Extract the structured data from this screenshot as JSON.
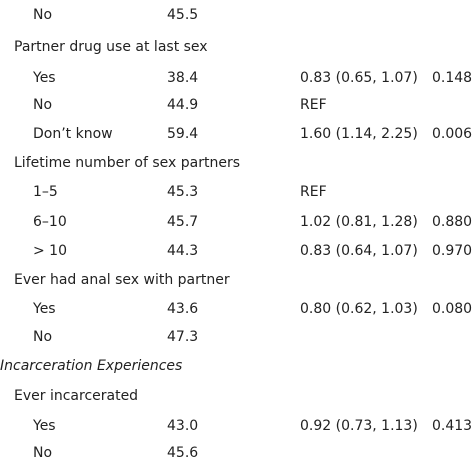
{
  "rows": [
    {
      "label": "No",
      "pct": "45.5",
      "or": "",
      "p": "",
      "level": 2
    },
    {
      "label": "Partner drug use at last sex",
      "pct": "",
      "or": "",
      "p": "",
      "level": 1
    },
    {
      "label": "Yes",
      "pct": "38.4",
      "or": "0.83 (0.65, 1.07)",
      "p": "0.148",
      "level": 2
    },
    {
      "label": "No",
      "pct": "44.9",
      "or": "REF",
      "p": "",
      "level": 2
    },
    {
      "label": "Don’t know",
      "pct": "59.4",
      "or": "1.60 (1.14, 2.25)",
      "p": "0.006",
      "level": 2
    },
    {
      "label": "Lifetime number of sex partners",
      "pct": "",
      "or": "",
      "p": "",
      "level": 1
    },
    {
      "label": "1–5",
      "pct": "45.3",
      "or": "REF",
      "p": "",
      "level": 2
    },
    {
      "label": "6–10",
      "pct": "45.7",
      "or": "1.02 (0.81, 1.28)",
      "p": "0.880",
      "level": 2
    },
    {
      "label": "> 10",
      "pct": "44.3",
      "or": "0.83 (0.64, 1.07)",
      "p": "0.970",
      "level": 2
    },
    {
      "label": "Ever had anal sex with partner",
      "pct": "",
      "or": "",
      "p": "",
      "level": 1
    },
    {
      "label": "Yes",
      "pct": "43.6",
      "or": "0.80 (0.62, 1.03)",
      "p": "0.080",
      "level": 2
    },
    {
      "label": "No",
      "pct": "47.3",
      "or": "",
      "p": "",
      "level": 2
    },
    {
      "label": "Incarceration Experiences",
      "pct": "",
      "or": "",
      "p": "",
      "level": 0
    },
    {
      "label": "Ever incarcerated",
      "pct": "",
      "or": "",
      "p": "",
      "level": 1
    },
    {
      "label": "Yes",
      "pct": "43.0",
      "or": "0.92 (0.73, 1.13)",
      "p": "0.413",
      "level": 2
    },
    {
      "label": "No",
      "pct": "45.6",
      "or": "",
      "p": "",
      "level": 2
    }
  ]
}
